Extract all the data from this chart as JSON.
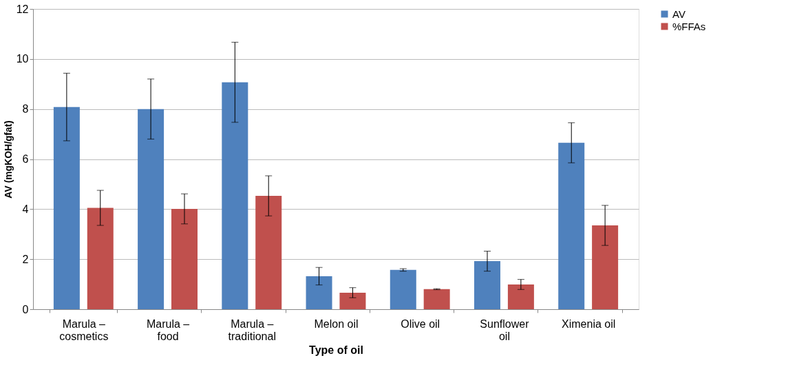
{
  "chart_data": {
    "type": "bar",
    "xlabel": "Type of oil",
    "ylabel": "AV (mgKOH/gfat)",
    "categories": [
      "Marula –\ncosmetics",
      "Marula –\nfood",
      "Marula –\ntraditional",
      "Melon oil",
      "Olive oil",
      "Sunflower\noil",
      "Ximenia oil"
    ],
    "series": [
      {
        "name": "AV",
        "color": "#4f81bd",
        "values": [
          8.08,
          8.0,
          9.07,
          1.32,
          1.57,
          1.92,
          6.65
        ],
        "errors": [
          1.35,
          1.2,
          1.6,
          0.35,
          0.05,
          0.4,
          0.8
        ]
      },
      {
        "name": "%FFAs",
        "color": "#c0504d",
        "values": [
          4.05,
          4.01,
          4.53,
          0.66,
          0.8,
          0.99,
          3.35
        ],
        "errors": [
          0.7,
          0.6,
          0.8,
          0.2,
          0.02,
          0.2,
          0.8
        ]
      }
    ],
    "ylim": [
      0,
      12
    ],
    "yticks": [
      0,
      2,
      4,
      6,
      8,
      10,
      12
    ],
    "grid": "y",
    "legend": "right"
  }
}
